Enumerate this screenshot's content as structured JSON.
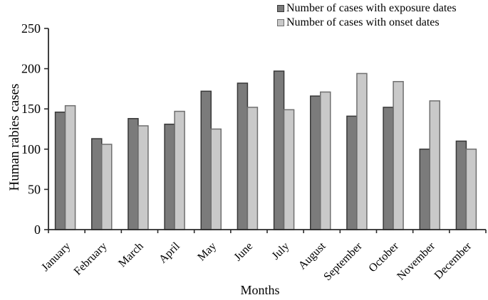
{
  "chart_data": {
    "type": "bar",
    "grouped": true,
    "title": "",
    "xlabel": "Months",
    "ylabel": "Human rabies cases",
    "ylim": [
      0,
      250
    ],
    "yticks": [
      0,
      50,
      100,
      150,
      200,
      250
    ],
    "grid": false,
    "legend_position": "top-center",
    "axis_color": "#2a2a2a",
    "categories": [
      "January",
      "February",
      "March",
      "April",
      "May",
      "June",
      "July",
      "August",
      "September",
      "October",
      "November",
      "December"
    ],
    "series": [
      {
        "name": "Number of cases with exposure dates",
        "color": "#7b7b7b",
        "border": "#383838",
        "values": [
          146,
          113,
          138,
          131,
          172,
          182,
          197,
          166,
          141,
          152,
          100,
          110
        ]
      },
      {
        "name": "Number of cases with onset dates",
        "color": "#c9c9c9",
        "border": "#6f6f6f",
        "values": [
          154,
          106,
          129,
          147,
          125,
          152,
          149,
          171,
          194,
          184,
          160,
          100
        ]
      }
    ]
  }
}
